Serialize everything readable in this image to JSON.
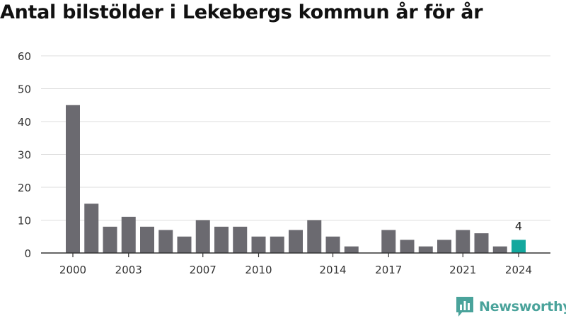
{
  "title": "Antal bilstölder i Lekebergs kommun år för år",
  "brand": {
    "name": "Newsworthy",
    "icon": "newsworthy-logo-icon",
    "color": "#4aa39b"
  },
  "colors": {
    "bar": "#6b6a70",
    "highlight": "#13a89e",
    "grid": "#dddddd",
    "axis": "#333333",
    "text": "#333333"
  },
  "chart_data": {
    "type": "bar",
    "title": "Antal bilstölder i Lekebergs kommun år för år",
    "xlabel": "",
    "ylabel": "",
    "ylim": [
      0,
      60
    ],
    "yticks": [
      0,
      10,
      20,
      30,
      40,
      50,
      60
    ],
    "grid": true,
    "categories": [
      "2000",
      "2001",
      "2002",
      "2003",
      "2004",
      "2005",
      "2006",
      "2007",
      "2008",
      "2009",
      "2010",
      "2011",
      "2012",
      "2013",
      "2014",
      "2015",
      "2016",
      "2017",
      "2018",
      "2019",
      "2020",
      "2021",
      "2022",
      "2023",
      "2024"
    ],
    "xtick_labels": [
      "2000",
      "2003",
      "2007",
      "2010",
      "2014",
      "2017",
      "2021",
      "2024"
    ],
    "values": [
      45,
      15,
      8,
      11,
      8,
      7,
      5,
      10,
      8,
      8,
      5,
      5,
      7,
      10,
      5,
      2,
      0,
      7,
      4,
      2,
      4,
      7,
      6,
      2,
      4
    ],
    "highlight_index": 24,
    "highlight_label": "4"
  }
}
